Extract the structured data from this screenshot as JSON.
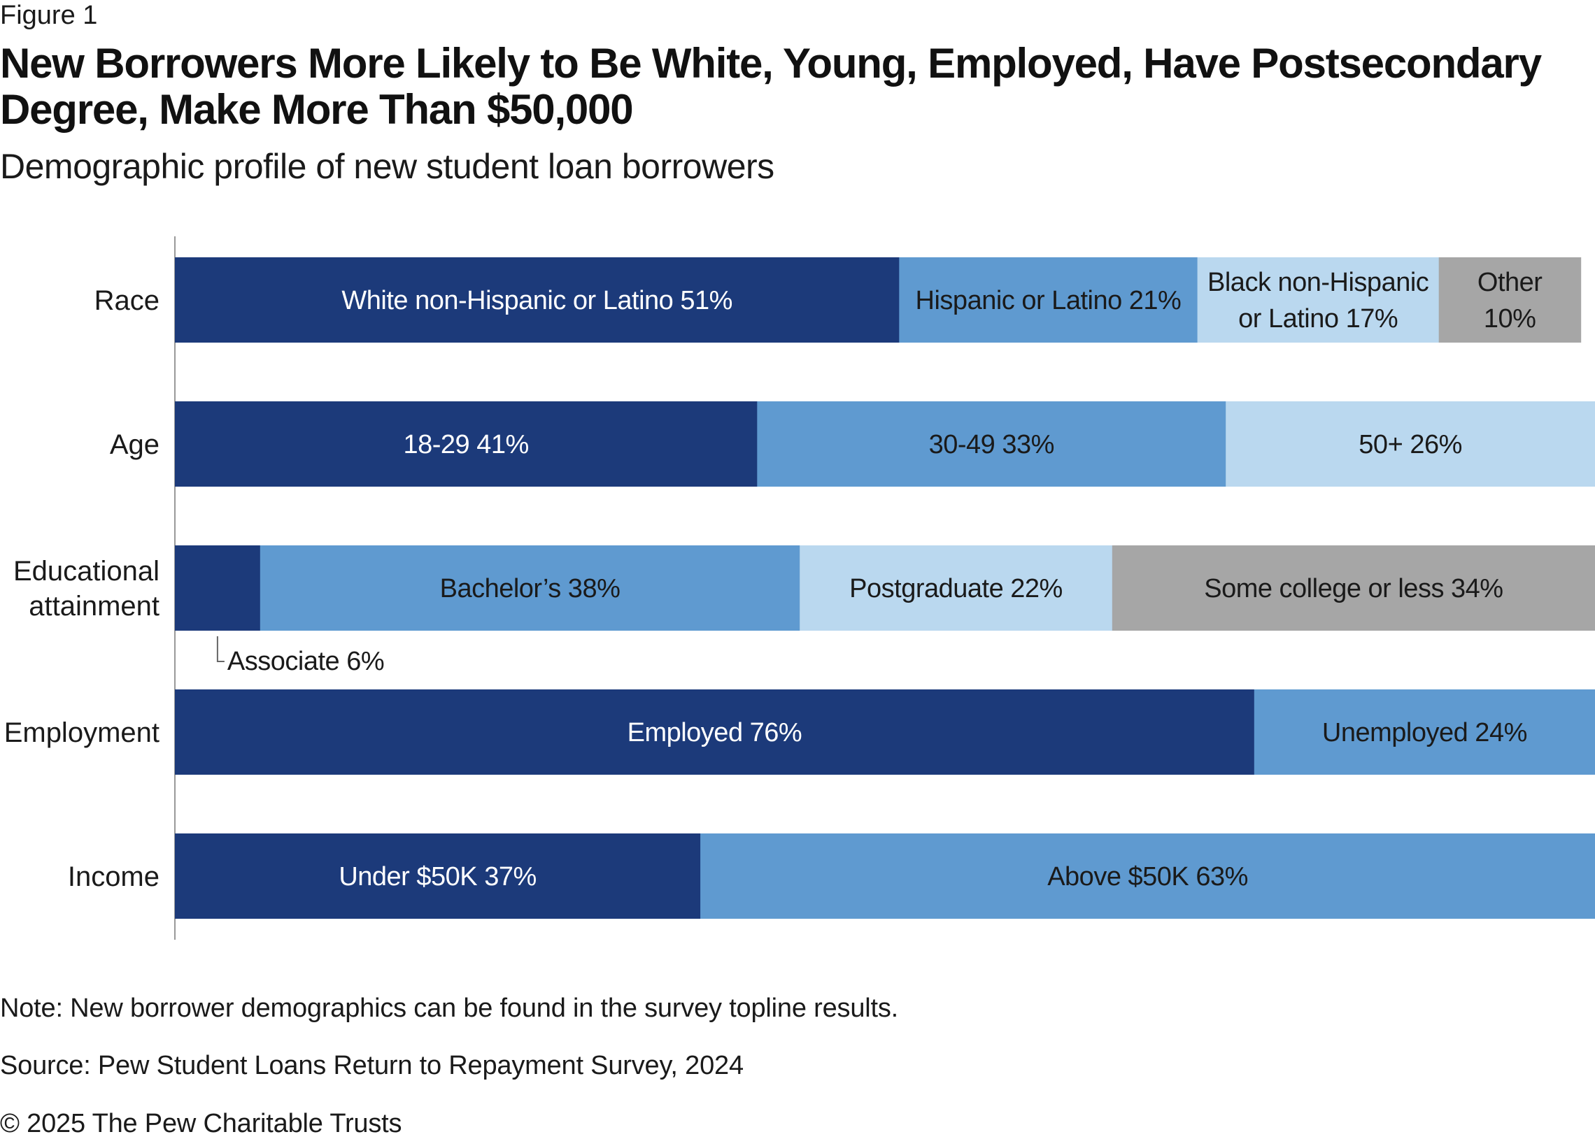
{
  "figure_label": "Figure 1",
  "title": "New Borrowers More Likely to Be White, Young, Employed, Have Postsecondary Degree, Make More Than $50,000",
  "subtitle": "Demographic profile of new student loan borrowers",
  "note": "Note: New borrower demographics can be found in the survey topline results.",
  "source": "Source: Pew Student Loans Return to Repayment Survey, 2024",
  "copyright": "© 2025 The Pew Charitable Trusts",
  "colors": {
    "dark_blue": "#1c3a7a",
    "mid_blue": "#5f9ad0",
    "light_blue": "#bad8ef",
    "gray": "#a6a6a6",
    "axis": "#999999"
  },
  "chart_data": {
    "type": "bar",
    "orientation": "horizontal",
    "stacked": true,
    "xlim": [
      0,
      100
    ],
    "unit": "%",
    "categories": [
      "Race",
      "Age",
      "Educational attainment",
      "Employment",
      "Income"
    ],
    "category_labels": [
      [
        "Race"
      ],
      [
        "Age"
      ],
      [
        "Educational",
        "attainment"
      ],
      [
        "Employment"
      ],
      [
        "Income"
      ]
    ],
    "rows": [
      {
        "category": "Race",
        "segments": [
          {
            "label": "White non-Hispanic or Latino 51%",
            "value": 51,
            "color": "dark_blue"
          },
          {
            "label": "Hispanic or Latino 21%",
            "value": 21,
            "color": "mid_blue"
          },
          {
            "label": "Black non-Hispanic\nor Latino 17%",
            "value": 17,
            "color": "light_blue"
          },
          {
            "label": "Other\n10%",
            "value": 10,
            "color": "gray"
          }
        ]
      },
      {
        "category": "Age",
        "segments": [
          {
            "label": "18-29  41%",
            "value": 41,
            "color": "dark_blue"
          },
          {
            "label": "30-49  33%",
            "value": 33,
            "color": "mid_blue"
          },
          {
            "label": "50+  26%",
            "value": 26,
            "color": "light_blue"
          }
        ]
      },
      {
        "category": "Educational attainment",
        "segments": [
          {
            "label": "Associate 6%",
            "value": 6,
            "color": "dark_blue",
            "callout": true
          },
          {
            "label": "Bachelor’s 38%",
            "value": 38,
            "color": "mid_blue"
          },
          {
            "label": "Postgraduate 22%",
            "value": 22,
            "color": "light_blue"
          },
          {
            "label": "Some college or less 34%",
            "value": 34,
            "color": "gray"
          }
        ]
      },
      {
        "category": "Employment",
        "segments": [
          {
            "label": "Employed 76%",
            "value": 76,
            "color": "dark_blue"
          },
          {
            "label": "Unemployed 24%",
            "value": 24,
            "color": "mid_blue"
          }
        ]
      },
      {
        "category": "Income",
        "segments": [
          {
            "label": "Under $50K 37%",
            "value": 37,
            "color": "dark_blue"
          },
          {
            "label": "Above $50K 63%",
            "value": 63,
            "color": "mid_blue"
          }
        ]
      }
    ]
  }
}
